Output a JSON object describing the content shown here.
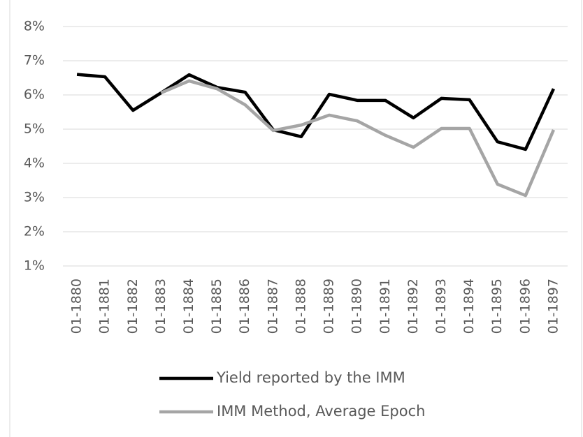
{
  "chart_data": {
    "type": "line",
    "categories": [
      "01-1880",
      "01-1881",
      "01-1882",
      "01-1883",
      "01-1884",
      "01-1885",
      "01-1886",
      "01-1887",
      "01-1888",
      "01-1889",
      "01-1890",
      "01-1891",
      "01-1892",
      "01-1893",
      "01-1894",
      "01-1895",
      "01-1896",
      "01-1897"
    ],
    "series": [
      {
        "name": "Yield reported by the IMM",
        "color": "#000000",
        "values": [
          6.6,
          6.53,
          5.55,
          6.06,
          6.59,
          6.22,
          6.08,
          4.98,
          4.78,
          6.02,
          5.84,
          5.84,
          5.33,
          5.9,
          5.86,
          4.63,
          4.41,
          6.18
        ]
      },
      {
        "name": "IMM Method, Average Epoch",
        "color": "#a5a5a5",
        "values": [
          null,
          null,
          null,
          6.06,
          6.41,
          6.18,
          5.71,
          4.96,
          5.12,
          5.41,
          5.24,
          4.82,
          4.47,
          5.02,
          5.02,
          3.39,
          3.06,
          4.98
        ]
      }
    ],
    "ylim": [
      1,
      8
    ],
    "yticks": [
      {
        "value": 1,
        "label": "1%"
      },
      {
        "value": 2,
        "label": "2%"
      },
      {
        "value": 3,
        "label": "3%"
      },
      {
        "value": 4,
        "label": "4%"
      },
      {
        "value": 5,
        "label": "5%"
      },
      {
        "value": 6,
        "label": "6%"
      },
      {
        "value": 7,
        "label": "7%"
      },
      {
        "value": 8,
        "label": "8%"
      }
    ],
    "grid": true
  }
}
